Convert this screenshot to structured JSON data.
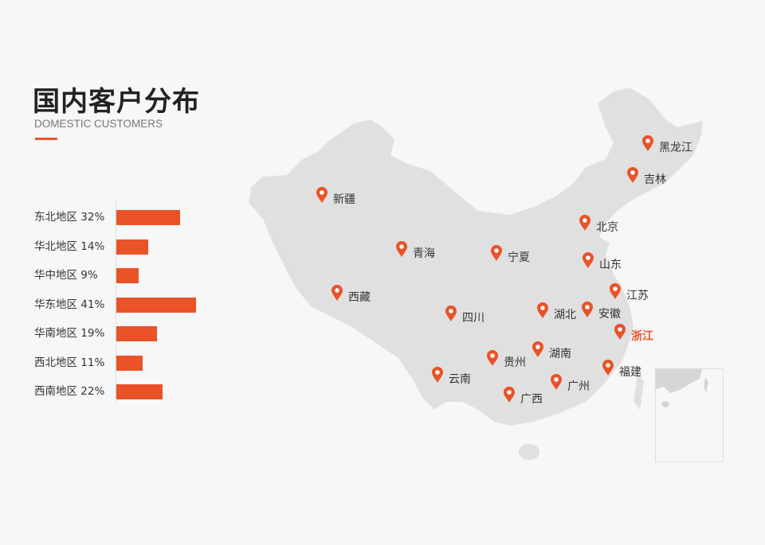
{
  "header": {
    "title": "国内客户分布",
    "subtitle": "DOMESTIC CUSTOMERS"
  },
  "colors": {
    "accent": "#ea5228",
    "map_fill": "#e0e0e0",
    "background": "#f7f7f7"
  },
  "chart_data": {
    "type": "bar",
    "orientation": "horizontal",
    "categories": [
      "东北地区",
      "华北地区",
      "华中地区",
      "华东地区",
      "华南地区",
      "西北地区",
      "西南地区"
    ],
    "values": [
      32,
      14,
      9,
      41,
      19,
      11,
      22
    ],
    "labels": [
      "东北地区 32%",
      "华北地区 14%",
      "华中地区 9%",
      "华东地区 41%",
      "华南地区 19%",
      "西北地区 11%",
      "西南地区 22%"
    ],
    "unit": "%",
    "grid": false
  },
  "map": {
    "icon": "map-pin-icon",
    "locations": [
      {
        "name": "黑龙江"
      },
      {
        "name": "吉林"
      },
      {
        "name": "新疆"
      },
      {
        "name": "北京"
      },
      {
        "name": "青海"
      },
      {
        "name": "宁夏"
      },
      {
        "name": "山东"
      },
      {
        "name": "江苏"
      },
      {
        "name": "西藏"
      },
      {
        "name": "四川"
      },
      {
        "name": "湖北"
      },
      {
        "name": "安徽"
      },
      {
        "name": "浙江",
        "highlighted": true
      },
      {
        "name": "湖南"
      },
      {
        "name": "贵州"
      },
      {
        "name": "福建"
      },
      {
        "name": "云南"
      },
      {
        "name": "广州"
      },
      {
        "name": "广西"
      }
    ]
  }
}
